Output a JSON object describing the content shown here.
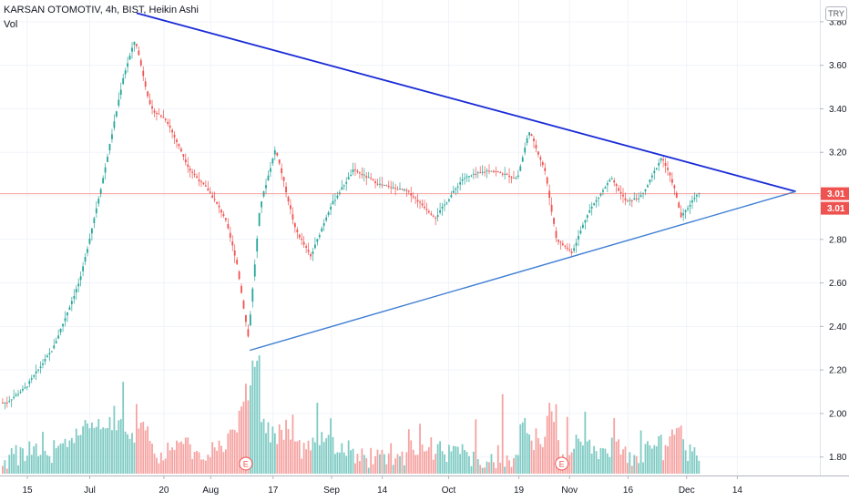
{
  "header": {
    "title": "KARSAN OTOMOTIV, 4h, BIST, Heikin Ashi",
    "indicator": "Vol",
    "currency": "TRY"
  },
  "colors": {
    "up": "#26a69a",
    "down": "#ef5350",
    "vol_up": "#7fcbc4",
    "vol_down": "#f5a3a1",
    "trend_upper": "#1a2bd6",
    "trend_lower": "#3f7fd4",
    "price_line": "#ef5350"
  },
  "chart_data": {
    "type": "candlestick",
    "y_axis": {
      "ticks": [
        "3.80",
        "3.60",
        "3.40",
        "3.20",
        "3.00",
        "2.80",
        "2.60",
        "2.40",
        "2.20",
        "2.00",
        "1.80"
      ],
      "range": [
        1.715,
        3.9
      ]
    },
    "x_axis": {
      "ticks": [
        "15",
        "Jul",
        "20",
        "Aug",
        "17",
        "Sep",
        "14",
        "Oct",
        "19",
        "Nov",
        "16",
        "Dec",
        "14"
      ]
    },
    "price_labels": [
      "3.01",
      "3.01"
    ],
    "last_price": 3.01,
    "trend_lines": [
      {
        "name": "upper",
        "from": [
          "Jul 13",
          3.84
        ],
        "to": [
          "Dec 29",
          3.02
        ]
      },
      {
        "name": "lower",
        "from": [
          "Aug 11",
          2.29
        ],
        "to": [
          "Dec 29",
          3.02
        ]
      }
    ],
    "event_markers": [
      "E",
      "E"
    ],
    "series_anchors": [
      {
        "x": "Jun 10",
        "close": 2.05
      },
      {
        "x": "Jun 15",
        "close": 2.12
      },
      {
        "x": "Jun 22",
        "close": 2.3
      },
      {
        "x": "Jun 29",
        "close": 2.62
      },
      {
        "x": "Jul 05",
        "close": 3.1
      },
      {
        "x": "Jul 10",
        "close": 3.55
      },
      {
        "x": "Jul 13",
        "close": 3.72
      },
      {
        "x": "Jul 17",
        "close": 3.4
      },
      {
        "x": "Jul 21",
        "close": 3.35
      },
      {
        "x": "Jul 27",
        "close": 3.12
      },
      {
        "x": "Aug 01",
        "close": 3.02
      },
      {
        "x": "Aug 05",
        "close": 2.9
      },
      {
        "x": "Aug 08",
        "close": 2.7
      },
      {
        "x": "Aug 11",
        "close": 2.35
      },
      {
        "x": "Aug 14",
        "close": 2.95
      },
      {
        "x": "Aug 18",
        "close": 3.22
      },
      {
        "x": "Aug 23",
        "close": 2.85
      },
      {
        "x": "Aug 27",
        "close": 2.72
      },
      {
        "x": "Sep 01",
        "close": 2.95
      },
      {
        "x": "Sep 07",
        "close": 3.12
      },
      {
        "x": "Sep 14",
        "close": 3.05
      },
      {
        "x": "Sep 21",
        "close": 3.02
      },
      {
        "x": "Sep 28",
        "close": 2.9
      },
      {
        "x": "Oct 05",
        "close": 3.08
      },
      {
        "x": "Oct 12",
        "close": 3.12
      },
      {
        "x": "Oct 19",
        "close": 3.08
      },
      {
        "x": "Oct 22",
        "close": 3.3
      },
      {
        "x": "Oct 26",
        "close": 3.12
      },
      {
        "x": "Oct 29",
        "close": 2.8
      },
      {
        "x": "Nov 02",
        "close": 2.74
      },
      {
        "x": "Nov 06",
        "close": 2.92
      },
      {
        "x": "Nov 12",
        "close": 3.08
      },
      {
        "x": "Nov 16",
        "close": 2.97
      },
      {
        "x": "Nov 20",
        "close": 3.0
      },
      {
        "x": "Nov 25",
        "close": 3.18
      },
      {
        "x": "Nov 28",
        "close": 3.05
      },
      {
        "x": "Nov 30",
        "close": 2.9
      },
      {
        "x": "Dec 04",
        "close": 3.01
      }
    ]
  }
}
